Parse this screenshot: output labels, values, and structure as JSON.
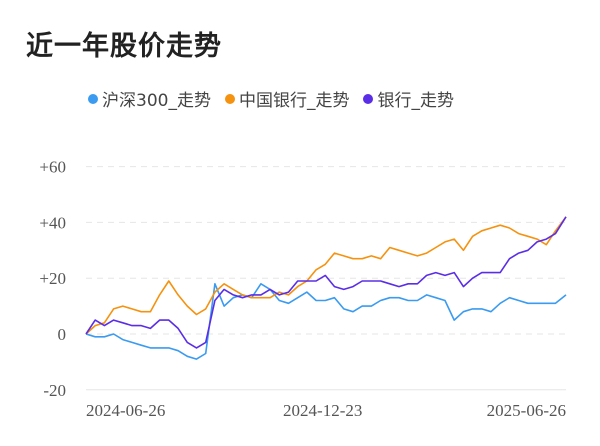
{
  "chart_data": {
    "type": "line",
    "title": "近一年股价走势",
    "xlabel": "",
    "ylabel": "",
    "ylim": [
      -20,
      60
    ],
    "yticks": [
      "+60",
      "+40",
      "+20",
      "0",
      "-20"
    ],
    "ytick_values": [
      60,
      40,
      20,
      0,
      -20
    ],
    "xticks": [
      "2024-06-26",
      "2024-12-23",
      "2025-06-26"
    ],
    "grid": true,
    "legend_position": "top",
    "x": [
      "2024-06-26",
      "2024-07-03",
      "2024-07-10",
      "2024-07-17",
      "2024-07-24",
      "2024-07-31",
      "2024-08-07",
      "2024-08-14",
      "2024-08-21",
      "2024-08-28",
      "2024-09-04",
      "2024-09-11",
      "2024-09-18",
      "2024-09-25",
      "2024-10-02",
      "2024-10-09",
      "2024-10-16",
      "2024-10-23",
      "2024-10-30",
      "2024-11-06",
      "2024-11-13",
      "2024-11-20",
      "2024-11-27",
      "2024-12-04",
      "2024-12-11",
      "2024-12-18",
      "2024-12-25",
      "2025-01-01",
      "2025-01-08",
      "2025-01-15",
      "2025-01-22",
      "2025-01-29",
      "2025-02-05",
      "2025-02-12",
      "2025-02-19",
      "2025-02-26",
      "2025-03-05",
      "2025-03-12",
      "2025-03-19",
      "2025-03-26",
      "2025-04-02",
      "2025-04-09",
      "2025-04-16",
      "2025-04-23",
      "2025-04-30",
      "2025-05-07",
      "2025-05-14",
      "2025-05-21",
      "2025-05-28",
      "2025-06-04",
      "2025-06-11",
      "2025-06-18",
      "2025-06-26"
    ],
    "series": [
      {
        "name": "沪深300_走势",
        "color": "#3a9bf0",
        "values": [
          0,
          -1,
          -1,
          0,
          -2,
          -3,
          -4,
          -5,
          -5,
          -5,
          -6,
          -8,
          -9,
          -7,
          18,
          10,
          13,
          14,
          13,
          18,
          16,
          12,
          11,
          13,
          15,
          12,
          12,
          13,
          9,
          8,
          10,
          10,
          12,
          13,
          13,
          12,
          12,
          14,
          13,
          12,
          5,
          8,
          9,
          9,
          8,
          11,
          13,
          12,
          11,
          11,
          11,
          11,
          14
        ]
      },
      {
        "name": "中国银行_走势",
        "color": "#f5920f",
        "values": [
          0,
          3,
          4,
          9,
          10,
          9,
          8,
          8,
          14,
          19,
          14,
          10,
          7,
          9,
          15,
          18,
          16,
          14,
          13,
          13,
          13,
          15,
          14,
          17,
          19,
          23,
          25,
          29,
          28,
          27,
          27,
          28,
          27,
          31,
          30,
          29,
          28,
          29,
          31,
          33,
          34,
          30,
          35,
          37,
          38,
          39,
          38,
          36,
          35,
          34,
          32,
          37,
          42
        ]
      },
      {
        "name": "银行_走势",
        "color": "#5a2ee6",
        "values": [
          0,
          5,
          3,
          5,
          4,
          3,
          3,
          2,
          5,
          5,
          2,
          -3,
          -5,
          -3,
          12,
          16,
          14,
          13,
          14,
          14,
          16,
          14,
          15,
          19,
          19,
          19,
          21,
          17,
          16,
          17,
          19,
          19,
          19,
          18,
          17,
          18,
          18,
          21,
          22,
          21,
          22,
          17,
          20,
          22,
          22,
          22,
          27,
          29,
          30,
          33,
          34,
          36,
          42
        ]
      }
    ]
  }
}
